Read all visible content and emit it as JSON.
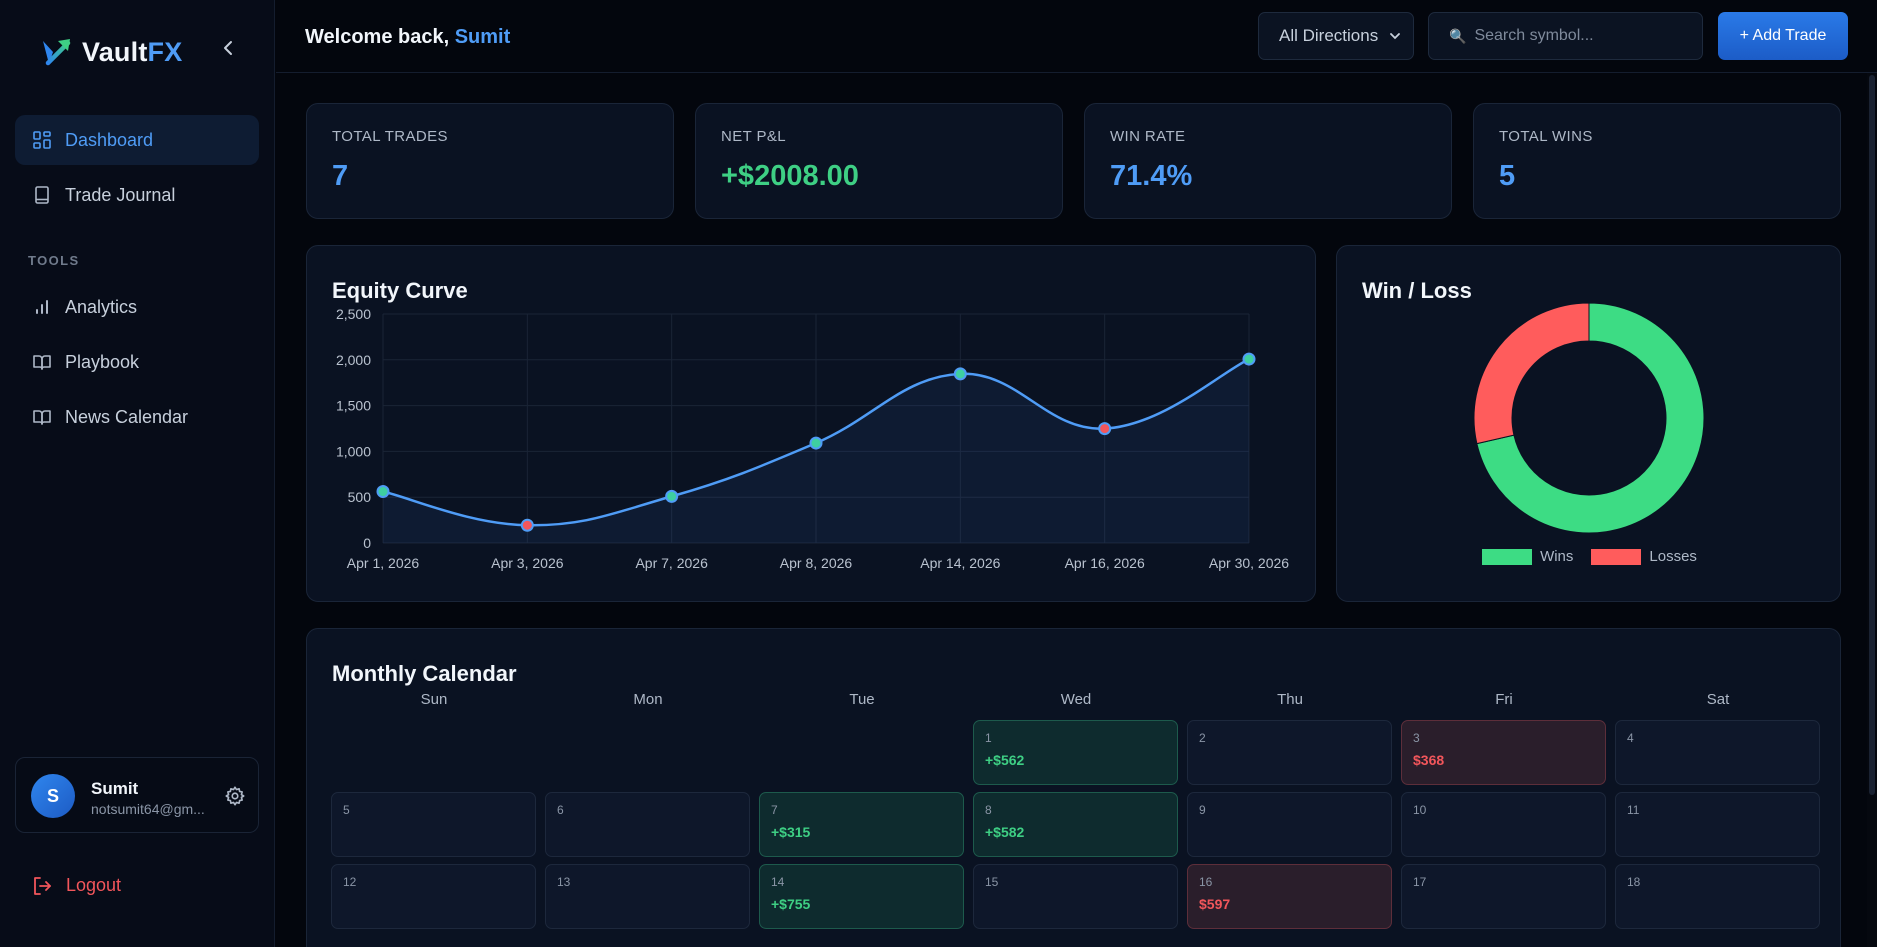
{
  "brand": {
    "name_part1": "Vault",
    "name_part2": "FX",
    "logo_icon": "trend-arrow-icon"
  },
  "sidebar": {
    "items": [
      {
        "label": "Dashboard",
        "icon": "grid-icon",
        "active": true
      },
      {
        "label": "Trade Journal",
        "icon": "book-icon",
        "active": false
      }
    ],
    "tools_label": "TOOLS",
    "tools": [
      {
        "label": "Analytics",
        "icon": "bar-chart-icon"
      },
      {
        "label": "Playbook",
        "icon": "open-book-icon"
      },
      {
        "label": "News Calendar",
        "icon": "open-book-icon"
      }
    ]
  },
  "user": {
    "initial": "S",
    "name": "Sumit",
    "email": "notsumit64@gm..."
  },
  "logout_label": "Logout",
  "header": {
    "welcome_prefix": "Welcome back, ",
    "welcome_name": "Sumit",
    "direction_select": "All Directions",
    "search_placeholder": "Search symbol...",
    "add_trade_label": "+ Add Trade"
  },
  "stats": [
    {
      "label": "TOTAL TRADES",
      "value": "7",
      "color": "#4f9cf6"
    },
    {
      "label": "NET P&L",
      "value": "+$2008.00",
      "color": "#3ecf84"
    },
    {
      "label": "WIN RATE",
      "value": "71.4%",
      "color": "#4f9cf6"
    },
    {
      "label": "TOTAL WINS",
      "value": "5",
      "color": "#4f9cf6"
    }
  ],
  "equity_title": "Equity Curve",
  "winloss_title": "Win / Loss",
  "chart_data": [
    {
      "type": "line",
      "title": "Equity Curve",
      "categories": [
        "Apr 1, 2026",
        "Apr 3, 2026",
        "Apr 7, 2026",
        "Apr 8, 2026",
        "Apr 14, 2026",
        "Apr 16, 2026",
        "Apr 30, 2026"
      ],
      "values": [
        562,
        194,
        509,
        1091,
        1846,
        1249,
        2008
      ],
      "point_results": [
        "win",
        "loss",
        "win",
        "win",
        "win",
        "loss",
        "win"
      ],
      "ylim": [
        0,
        2500
      ],
      "yticks": [
        "0",
        "500",
        "1,000",
        "1,500",
        "2,000",
        "2,500"
      ],
      "grid": true,
      "line_color": "#4f9cf6",
      "win_point_color": "#3ecfa0",
      "loss_point_color": "#f2565b"
    },
    {
      "type": "pie",
      "title": "Win / Loss",
      "categories": [
        "Wins",
        "Losses"
      ],
      "values": [
        5,
        2
      ],
      "colors": [
        "#3ddc84",
        "#ff5c5c"
      ],
      "legend": "bottom"
    }
  ],
  "calendar": {
    "title": "Monthly Calendar",
    "weekdays": [
      "Sun",
      "Mon",
      "Tue",
      "Wed",
      "Thu",
      "Fri",
      "Sat"
    ],
    "first_weekday": 3,
    "days": [
      {
        "day": "1",
        "pnl": "+$562",
        "result": "win"
      },
      {
        "day": "2",
        "pnl": "",
        "result": ""
      },
      {
        "day": "3",
        "pnl": "$368",
        "result": "loss"
      },
      {
        "day": "4",
        "pnl": "",
        "result": ""
      },
      {
        "day": "5",
        "pnl": "",
        "result": ""
      },
      {
        "day": "6",
        "pnl": "",
        "result": ""
      },
      {
        "day": "7",
        "pnl": "+$315",
        "result": "win"
      },
      {
        "day": "8",
        "pnl": "+$582",
        "result": "win"
      },
      {
        "day": "9",
        "pnl": "",
        "result": ""
      },
      {
        "day": "10",
        "pnl": "",
        "result": ""
      },
      {
        "day": "11",
        "pnl": "",
        "result": ""
      },
      {
        "day": "12",
        "pnl": "",
        "result": ""
      },
      {
        "day": "13",
        "pnl": "",
        "result": ""
      },
      {
        "day": "14",
        "pnl": "+$755",
        "result": "win"
      },
      {
        "day": "15",
        "pnl": "",
        "result": ""
      },
      {
        "day": "16",
        "pnl": "$597",
        "result": "loss"
      },
      {
        "day": "17",
        "pnl": "",
        "result": ""
      },
      {
        "day": "18",
        "pnl": "",
        "result": ""
      }
    ]
  }
}
